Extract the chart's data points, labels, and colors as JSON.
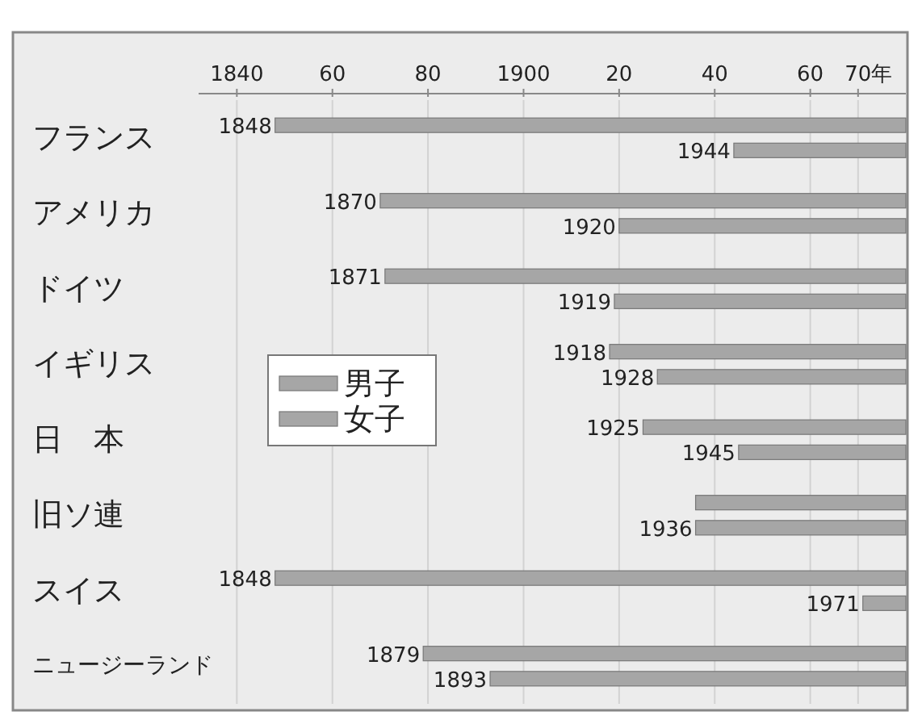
{
  "chart_data": {
    "type": "bar",
    "orientation": "horizontal",
    "categories": [
      "フランス",
      "アメリカ",
      "ドイツ",
      "イギリス",
      "日　本",
      "旧ソ連",
      "スイス",
      "ニュージーランド"
    ],
    "series": [
      {
        "name": "男子",
        "color": "#a6a6a6",
        "base": [
          1848,
          1870,
          1871,
          1918,
          1925,
          1936,
          1848,
          1879
        ],
        "values": [
          132,
          110,
          109,
          62,
          55,
          44,
          132,
          101
        ]
      },
      {
        "name": "女子",
        "color": "#a6a6a6",
        "base": [
          1944,
          1920,
          1919,
          1928,
          1945,
          1936,
          1971,
          1893
        ],
        "values": [
          36,
          60,
          61,
          52,
          35,
          44,
          9,
          87
        ]
      }
    ],
    "annotations": [
      {
        "text": "1848",
        "x": 1848,
        "y": "フランス"
      },
      {
        "text": "1944",
        "x": 1944,
        "y": "フランス"
      },
      {
        "text": "1870",
        "x": 1870,
        "y": "アメリカ"
      },
      {
        "text": "1920",
        "x": 1920,
        "y": "アメリカ"
      },
      {
        "text": "1871",
        "x": 1871,
        "y": "ドイツ"
      },
      {
        "text": "1919",
        "x": 1919,
        "y": "ドイツ"
      },
      {
        "text": "1918",
        "x": 1918,
        "y": "イギリス"
      },
      {
        "text": "1928",
        "x": 1928,
        "y": "イギリス"
      },
      {
        "text": "1925",
        "x": 1925,
        "y": "日　本"
      },
      {
        "text": "1945",
        "x": 1945,
        "y": "日　本"
      },
      {
        "text": "1936",
        "x": 1936,
        "y": "旧ソ連"
      },
      {
        "text": "1848",
        "x": 1848,
        "y": "スイス"
      },
      {
        "text": "1971",
        "x": 1971,
        "y": "スイス"
      },
      {
        "text": "1879",
        "x": 1879,
        "y": "ニュージーランド"
      },
      {
        "text": "1893",
        "x": 1893,
        "y": "ニュージーランド"
      }
    ],
    "xlim": [
      1832,
      1980
    ],
    "xticks": [
      {
        "value": 1840,
        "label": "1840"
      },
      {
        "value": 1860,
        "label": "60"
      },
      {
        "value": 1880,
        "label": "80"
      },
      {
        "value": 1900,
        "label": "1900"
      },
      {
        "value": 1920,
        "label": "20"
      },
      {
        "value": 1940,
        "label": "40"
      },
      {
        "value": 1960,
        "label": "60"
      },
      {
        "value": 1970,
        "label": "70"
      }
    ],
    "xlabel": "年",
    "grid": "x",
    "legend": "left"
  }
}
